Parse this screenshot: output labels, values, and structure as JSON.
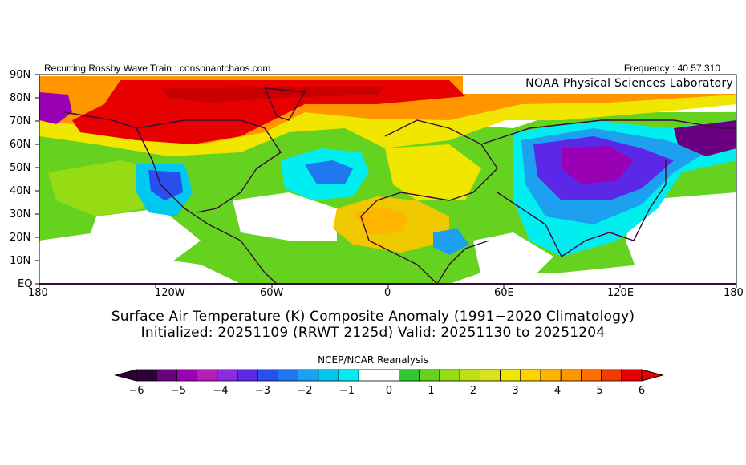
{
  "header": {
    "left_text": "Recurring Rossby Wave Train : consonantchaos.com",
    "right_text": "Frequency : 40 57 310",
    "source_box": "NOAA Physical Sciences Laboratory"
  },
  "map": {
    "lat_labels": [
      "90N",
      "80N",
      "70N",
      "60N",
      "50N",
      "40N",
      "30N",
      "20N",
      "10N",
      "EQ"
    ],
    "lon_labels": [
      "180",
      "120W",
      "60W",
      "0",
      "60E",
      "120E",
      "180"
    ],
    "anomaly_regions": [
      {
        "name": "arctic-canada-warm",
        "value": 6
      },
      {
        "name": "siberia-mongolia-cold",
        "value": -4
      },
      {
        "name": "north-atlantic-cold",
        "value": -2
      },
      {
        "name": "western-us-cold",
        "value": -2
      },
      {
        "name": "sahara-warm",
        "value": 3
      },
      {
        "name": "east-africa-cold",
        "value": -2
      }
    ]
  },
  "title": {
    "line1": "Surface Air Temperature (K) Composite Anomaly (1991−2020 Climatology)",
    "line2": "Initialized: 20251109 (RRWT 2125d) Valid: 20251130 to 20251204"
  },
  "colorbar": {
    "title": "NCEP/NCAR Reanalysis",
    "ticks": [
      "−6",
      "−5",
      "−4",
      "−3",
      "−2",
      "−1",
      "0",
      "1",
      "2",
      "3",
      "4",
      "5",
      "6"
    ],
    "colors": [
      "#2a0036",
      "#6a0080",
      "#9a00b4",
      "#b41eb4",
      "#8a2be2",
      "#5a28e6",
      "#2850f0",
      "#1e78f0",
      "#1ea0f0",
      "#00c8f0",
      "#00eef0",
      "#ffffff",
      "#ffffff",
      "#32c832",
      "#64d21e",
      "#96dc14",
      "#bee114",
      "#dce11e",
      "#f0e600",
      "#ffd200",
      "#ffb400",
      "#ff9600",
      "#ff6e00",
      "#f03c00",
      "#e60000"
    ]
  }
}
